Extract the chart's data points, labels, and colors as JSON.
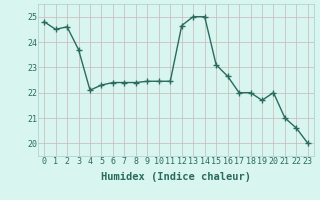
{
  "x": [
    0,
    1,
    2,
    3,
    4,
    5,
    6,
    7,
    8,
    9,
    10,
    11,
    12,
    13,
    14,
    15,
    16,
    17,
    18,
    19,
    20,
    21,
    22,
    23
  ],
  "y": [
    24.8,
    24.5,
    24.6,
    23.7,
    22.1,
    22.3,
    22.4,
    22.4,
    22.4,
    22.45,
    22.45,
    22.45,
    24.65,
    25.0,
    25.0,
    23.1,
    22.65,
    22.0,
    22.0,
    21.7,
    22.0,
    21.0,
    20.6,
    20.0
  ],
  "line_color": "#2a6b5e",
  "marker": "+",
  "marker_size": 4,
  "background_color": "#d8f5f0",
  "grid_color_major": "#c8b8b8",
  "xlabel": "Humidex (Indice chaleur)",
  "ylim": [
    19.5,
    25.5
  ],
  "xlim": [
    -0.5,
    23.5
  ],
  "yticks": [
    20,
    21,
    22,
    23,
    24,
    25
  ],
  "xticks": [
    0,
    1,
    2,
    3,
    4,
    5,
    6,
    7,
    8,
    9,
    10,
    11,
    12,
    13,
    14,
    15,
    16,
    17,
    18,
    19,
    20,
    21,
    22,
    23
  ],
  "line_width": 1.0,
  "xlabel_fontsize": 7.5,
  "tick_fontsize": 6.0,
  "tick_color": "#2a6b5e"
}
